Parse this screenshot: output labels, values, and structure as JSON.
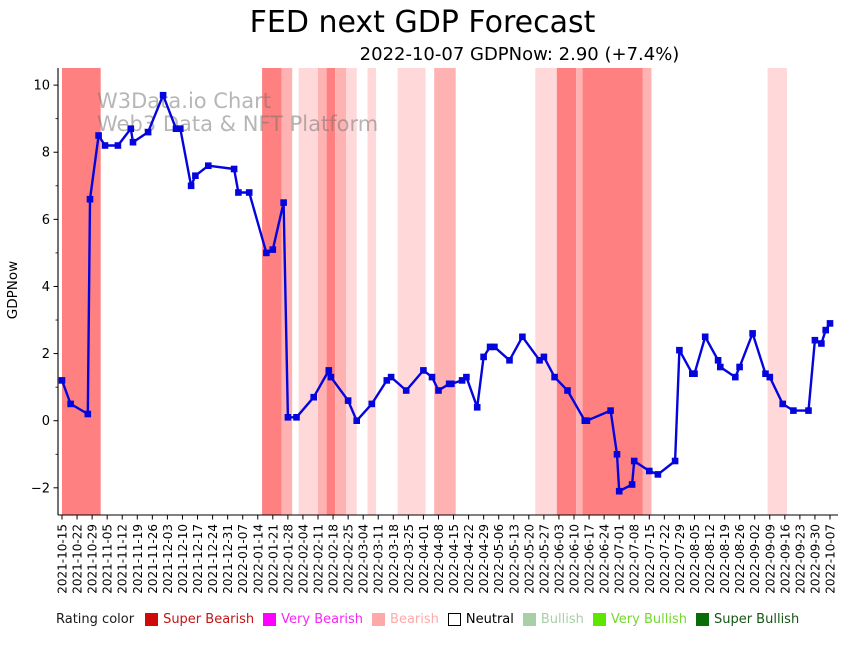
{
  "title": "FED next GDP Forecast",
  "subtitle": "2022-10-07 GDPNow: 2.90 (+7.4%)",
  "watermark": {
    "line1": "W3Data.io Chart",
    "line2": "Web3 Data & NFT Platform"
  },
  "legend": {
    "label": "Rating color",
    "items": [
      {
        "label": "Super Bearish",
        "color": "#cf0a0a",
        "text_color": "#c41414"
      },
      {
        "label": "Very Bearish",
        "color": "#ff00ff",
        "text_color": "#f726f7"
      },
      {
        "label": "Bearish",
        "color": "#ffa8a8",
        "text_color": "#ffaaaa"
      },
      {
        "label": "Neutral",
        "color": "#ffffff",
        "text_color": "#000000",
        "border": "#000000"
      },
      {
        "label": "Bullish",
        "color": "#a8cfa8",
        "text_color": "#a8cfa8"
      },
      {
        "label": "Very Bullish",
        "color": "#5ce600",
        "text_color": "#74d92e"
      },
      {
        "label": "Super Bullish",
        "color": "#086d08",
        "text_color": "#175417"
      }
    ]
  },
  "chart_data": {
    "type": "line",
    "title": "FED next GDP Forecast",
    "subtitle": "2022-10-07 GDPNow: 2.90 (+7.4%)",
    "xlabel": "",
    "ylabel": "GDPNow",
    "ylim": [
      -2.81,
      10.51
    ],
    "yticks": [
      -2,
      0,
      2,
      4,
      6,
      8,
      10
    ],
    "grid": false,
    "legend_position": "bottom",
    "line_color": "#0404dd",
    "marker": "square",
    "xtick_labels": [
      "2021-10-15",
      "2021-10-22",
      "2021-10-29",
      "2021-11-05",
      "2021-11-12",
      "2021-11-19",
      "2021-11-26",
      "2021-12-03",
      "2021-12-10",
      "2021-12-17",
      "2021-12-24",
      "2021-12-31",
      "2022-01-07",
      "2022-01-14",
      "2022-01-21",
      "2022-01-28",
      "2022-02-04",
      "2022-02-11",
      "2022-02-18",
      "2022-02-25",
      "2022-03-04",
      "2022-03-11",
      "2022-03-18",
      "2022-03-25",
      "2022-04-01",
      "2022-04-08",
      "2022-04-15",
      "2022-04-22",
      "2022-04-29",
      "2022-05-06",
      "2022-05-13",
      "2022-05-20",
      "2022-05-27",
      "2022-06-03",
      "2022-06-10",
      "2022-06-17",
      "2022-06-24",
      "2022-07-01",
      "2022-07-08",
      "2022-07-15",
      "2022-07-22",
      "2022-07-29",
      "2022-08-05",
      "2022-08-12",
      "2022-08-19",
      "2022-08-26",
      "2022-09-02",
      "2022-09-09",
      "2022-09-16",
      "2022-09-23",
      "2022-09-30",
      "2022-10-07"
    ],
    "points": [
      [
        "2021-10-15",
        1.2
      ],
      [
        "2021-10-19",
        0.5
      ],
      [
        "2021-10-27",
        0.2
      ],
      [
        "2021-10-28",
        6.6
      ],
      [
        "2021-11-01",
        8.5
      ],
      [
        "2021-11-04",
        8.2
      ],
      [
        "2021-11-10",
        8.2
      ],
      [
        "2021-11-16",
        8.7
      ],
      [
        "2021-11-17",
        8.3
      ],
      [
        "2021-11-24",
        8.6
      ],
      [
        "2021-12-01",
        9.7
      ],
      [
        "2021-12-07",
        8.7
      ],
      [
        "2021-12-09",
        8.7
      ],
      [
        "2021-12-14",
        7.0
      ],
      [
        "2021-12-16",
        7.3
      ],
      [
        "2021-12-22",
        7.6
      ],
      [
        "2022-01-03",
        7.5
      ],
      [
        "2022-01-05",
        6.8
      ],
      [
        "2022-01-10",
        6.8
      ],
      [
        "2022-01-18",
        5.0
      ],
      [
        "2022-01-21",
        5.1
      ],
      [
        "2022-01-26",
        6.5
      ],
      [
        "2022-01-28",
        0.1
      ],
      [
        "2022-02-01",
        0.1
      ],
      [
        "2022-02-09",
        0.7
      ],
      [
        "2022-02-16",
        1.5
      ],
      [
        "2022-02-17",
        1.3
      ],
      [
        "2022-02-25",
        0.6
      ],
      [
        "2022-03-01",
        0.0
      ],
      [
        "2022-03-08",
        0.5
      ],
      [
        "2022-03-15",
        1.2
      ],
      [
        "2022-03-17",
        1.3
      ],
      [
        "2022-03-24",
        0.9
      ],
      [
        "2022-04-01",
        1.5
      ],
      [
        "2022-04-05",
        1.3
      ],
      [
        "2022-04-08",
        0.9
      ],
      [
        "2022-04-13",
        1.1
      ],
      [
        "2022-04-14",
        1.1
      ],
      [
        "2022-04-19",
        1.2
      ],
      [
        "2022-04-21",
        1.3
      ],
      [
        "2022-04-26",
        0.4
      ],
      [
        "2022-04-29",
        1.9
      ],
      [
        "2022-05-02",
        2.2
      ],
      [
        "2022-05-04",
        2.2
      ],
      [
        "2022-05-11",
        1.8
      ],
      [
        "2022-05-17",
        2.5
      ],
      [
        "2022-05-25",
        1.8
      ],
      [
        "2022-05-27",
        1.9
      ],
      [
        "2022-06-01",
        1.3
      ],
      [
        "2022-06-07",
        0.9
      ],
      [
        "2022-06-15",
        0.0
      ],
      [
        "2022-06-16",
        0.0
      ],
      [
        "2022-06-27",
        0.3
      ],
      [
        "2022-06-30",
        -1.0
      ],
      [
        "2022-07-01",
        -2.1
      ],
      [
        "2022-07-07",
        -1.9
      ],
      [
        "2022-07-08",
        -1.2
      ],
      [
        "2022-07-15",
        -1.5
      ],
      [
        "2022-07-19",
        -1.6
      ],
      [
        "2022-07-27",
        -1.2
      ],
      [
        "2022-07-29",
        2.1
      ],
      [
        "2022-08-04",
        1.4
      ],
      [
        "2022-08-05",
        1.4
      ],
      [
        "2022-08-10",
        2.5
      ],
      [
        "2022-08-16",
        1.8
      ],
      [
        "2022-08-17",
        1.6
      ],
      [
        "2022-08-24",
        1.3
      ],
      [
        "2022-08-26",
        1.6
      ],
      [
        "2022-09-01",
        2.6
      ],
      [
        "2022-09-07",
        1.4
      ],
      [
        "2022-09-09",
        1.3
      ],
      [
        "2022-09-15",
        0.5
      ],
      [
        "2022-09-20",
        0.3
      ],
      [
        "2022-09-27",
        0.3
      ],
      [
        "2022-09-30",
        2.4
      ],
      [
        "2022-10-03",
        2.3
      ],
      [
        "2022-10-05",
        2.7
      ],
      [
        "2022-10-07",
        2.9
      ]
    ],
    "band_colors": {
      "strong": "#ff8080",
      "medium": "#ffb2b2",
      "light": "#ffd9d9"
    },
    "bands": [
      {
        "from": "2021-10-15",
        "to": "2021-11-02",
        "shade": "strong"
      },
      {
        "from": "2022-01-16",
        "to": "2022-01-25",
        "shade": "strong"
      },
      {
        "from": "2022-01-25",
        "to": "2022-01-30",
        "shade": "medium"
      },
      {
        "from": "2022-02-02",
        "to": "2022-02-11",
        "shade": "light"
      },
      {
        "from": "2022-02-11",
        "to": "2022-02-15",
        "shade": "medium"
      },
      {
        "from": "2022-02-15",
        "to": "2022-02-19",
        "shade": "strong"
      },
      {
        "from": "2022-02-19",
        "to": "2022-02-24",
        "shade": "medium"
      },
      {
        "from": "2022-02-24",
        "to": "2022-03-01",
        "shade": "light"
      },
      {
        "from": "2022-03-06",
        "to": "2022-03-10",
        "shade": "light"
      },
      {
        "from": "2022-03-20",
        "to": "2022-04-02",
        "shade": "light"
      },
      {
        "from": "2022-04-06",
        "to": "2022-04-16",
        "shade": "medium"
      },
      {
        "from": "2022-05-23",
        "to": "2022-06-02",
        "shade": "light"
      },
      {
        "from": "2022-06-02",
        "to": "2022-06-11",
        "shade": "strong"
      },
      {
        "from": "2022-06-11",
        "to": "2022-06-14",
        "shade": "medium"
      },
      {
        "from": "2022-06-14",
        "to": "2022-07-12",
        "shade": "strong"
      },
      {
        "from": "2022-07-12",
        "to": "2022-07-16",
        "shade": "medium"
      },
      {
        "from": "2022-09-08",
        "to": "2022-09-17",
        "shade": "light"
      }
    ]
  }
}
